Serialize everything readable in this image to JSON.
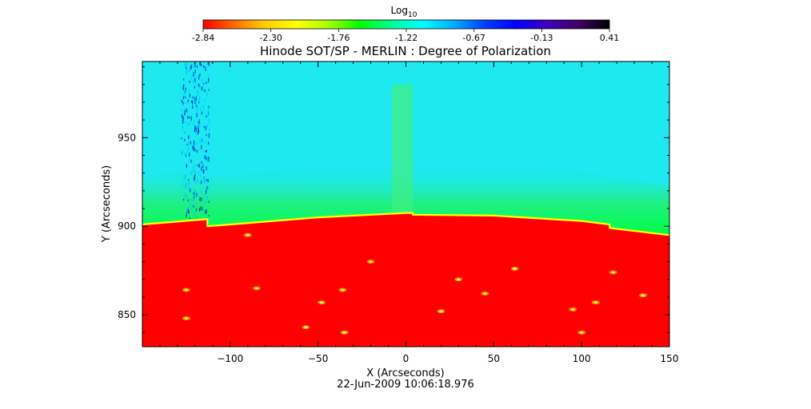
{
  "chart_data": {
    "type": "heatmap",
    "title": "Hinode SOT/SP - MERLIN : Degree of Polarization",
    "xlabel": "X (Arcseconds)",
    "ylabel": "Y (Arcseconds)",
    "date_label": "22-Jun-2009 10:06:18.976",
    "colorbar": {
      "label_base": "Log",
      "label_sub": "10",
      "min": -2.84,
      "max": 0.41,
      "tick_labels": [
        "-2.84",
        "-2.30",
        "-1.76",
        "-1.22",
        "-0.67",
        "-0.13",
        "0.41"
      ],
      "colormap": [
        "#ff0000",
        "#ff6a00",
        "#ffd000",
        "#ffff00",
        "#aaff00",
        "#00ff00",
        "#00ff90",
        "#00ffff",
        "#00b0ff",
        "#0040ff",
        "#0000ff",
        "#4000c0",
        "#400060",
        "#000000"
      ]
    },
    "xlim": [
      -150,
      150
    ],
    "ylim": [
      832,
      993
    ],
    "xticks": [
      -100,
      -50,
      0,
      50,
      100,
      150
    ],
    "yticks": [
      850,
      900,
      950
    ],
    "limb_profile": {
      "x": [
        -150,
        -113,
        -113,
        -100,
        -50,
        0,
        4,
        4,
        50,
        100,
        116,
        116,
        150
      ],
      "y": [
        901,
        904,
        900,
        901,
        905,
        907.5,
        907.5,
        906.5,
        906,
        903,
        901,
        899,
        895
      ]
    },
    "regions": [
      {
        "name": "disk",
        "color": "#ff0000"
      },
      {
        "name": "limb",
        "color": "#ffff00"
      },
      {
        "name": "near-limb",
        "color": "#00ff40"
      },
      {
        "name": "off-limb",
        "color": "#1ee8f0"
      }
    ],
    "bright_points": [
      {
        "x": -125,
        "y": 864
      },
      {
        "x": -85,
        "y": 865
      },
      {
        "x": -48,
        "y": 857
      },
      {
        "x": -36,
        "y": 864
      },
      {
        "x": -35,
        "y": 840
      },
      {
        "x": -20,
        "y": 880
      },
      {
        "x": 30,
        "y": 870
      },
      {
        "x": 45,
        "y": 862
      },
      {
        "x": 62,
        "y": 876
      },
      {
        "x": 95,
        "y": 853
      },
      {
        "x": 108,
        "y": 857
      },
      {
        "x": 118,
        "y": 874
      },
      {
        "x": 135,
        "y": 861
      },
      {
        "x": -125,
        "y": 848
      },
      {
        "x": -57,
        "y": 843
      },
      {
        "x": 100,
        "y": 840
      },
      {
        "x": -90,
        "y": 895
      },
      {
        "x": 20,
        "y": 852
      }
    ]
  }
}
